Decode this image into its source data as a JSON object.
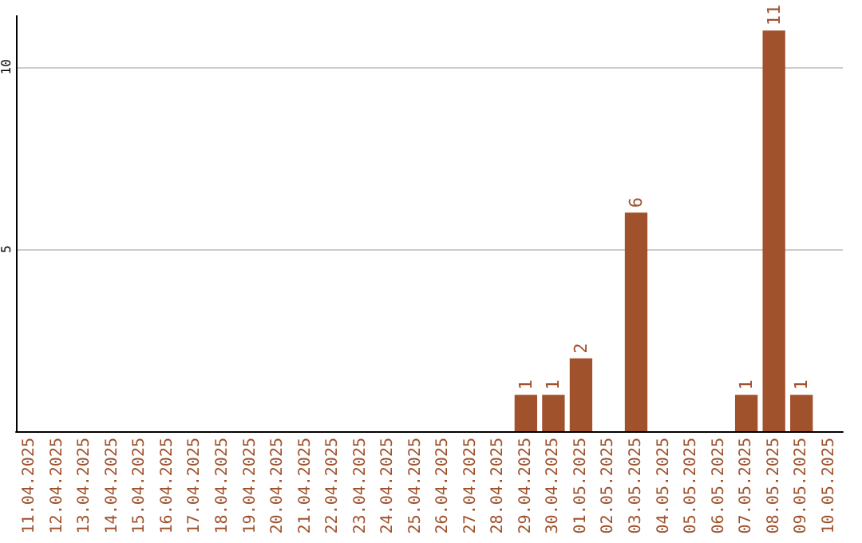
{
  "chart_data": {
    "type": "bar",
    "categories": [
      "11.04.2025",
      "12.04.2025",
      "13.04.2025",
      "14.04.2025",
      "15.04.2025",
      "16.04.2025",
      "17.04.2025",
      "18.04.2025",
      "19.04.2025",
      "20.04.2025",
      "21.04.2025",
      "22.04.2025",
      "23.04.2025",
      "24.04.2025",
      "25.04.2025",
      "26.04.2025",
      "27.04.2025",
      "28.04.2025",
      "29.04.2025",
      "30.04.2025",
      "01.05.2025",
      "02.05.2025",
      "03.05.2025",
      "04.05.2025",
      "05.05.2025",
      "06.05.2025",
      "07.05.2025",
      "08.05.2025",
      "09.05.2025",
      "10.05.2025"
    ],
    "values": [
      0,
      0,
      0,
      0,
      0,
      0,
      0,
      0,
      0,
      0,
      0,
      0,
      0,
      0,
      0,
      0,
      0,
      0,
      1,
      1,
      2,
      0,
      6,
      0,
      0,
      0,
      1,
      11,
      1,
      0
    ],
    "value_labels": [
      null,
      null,
      null,
      null,
      null,
      null,
      null,
      null,
      null,
      null,
      null,
      null,
      null,
      null,
      null,
      null,
      null,
      null,
      "1",
      "1",
      "2",
      null,
      "6",
      null,
      null,
      null,
      "1",
      "11",
      "1",
      null
    ],
    "color": "#a0522d",
    "ylim": [
      0,
      11.4
    ],
    "yticks": [
      5,
      10
    ],
    "grid": "y"
  }
}
